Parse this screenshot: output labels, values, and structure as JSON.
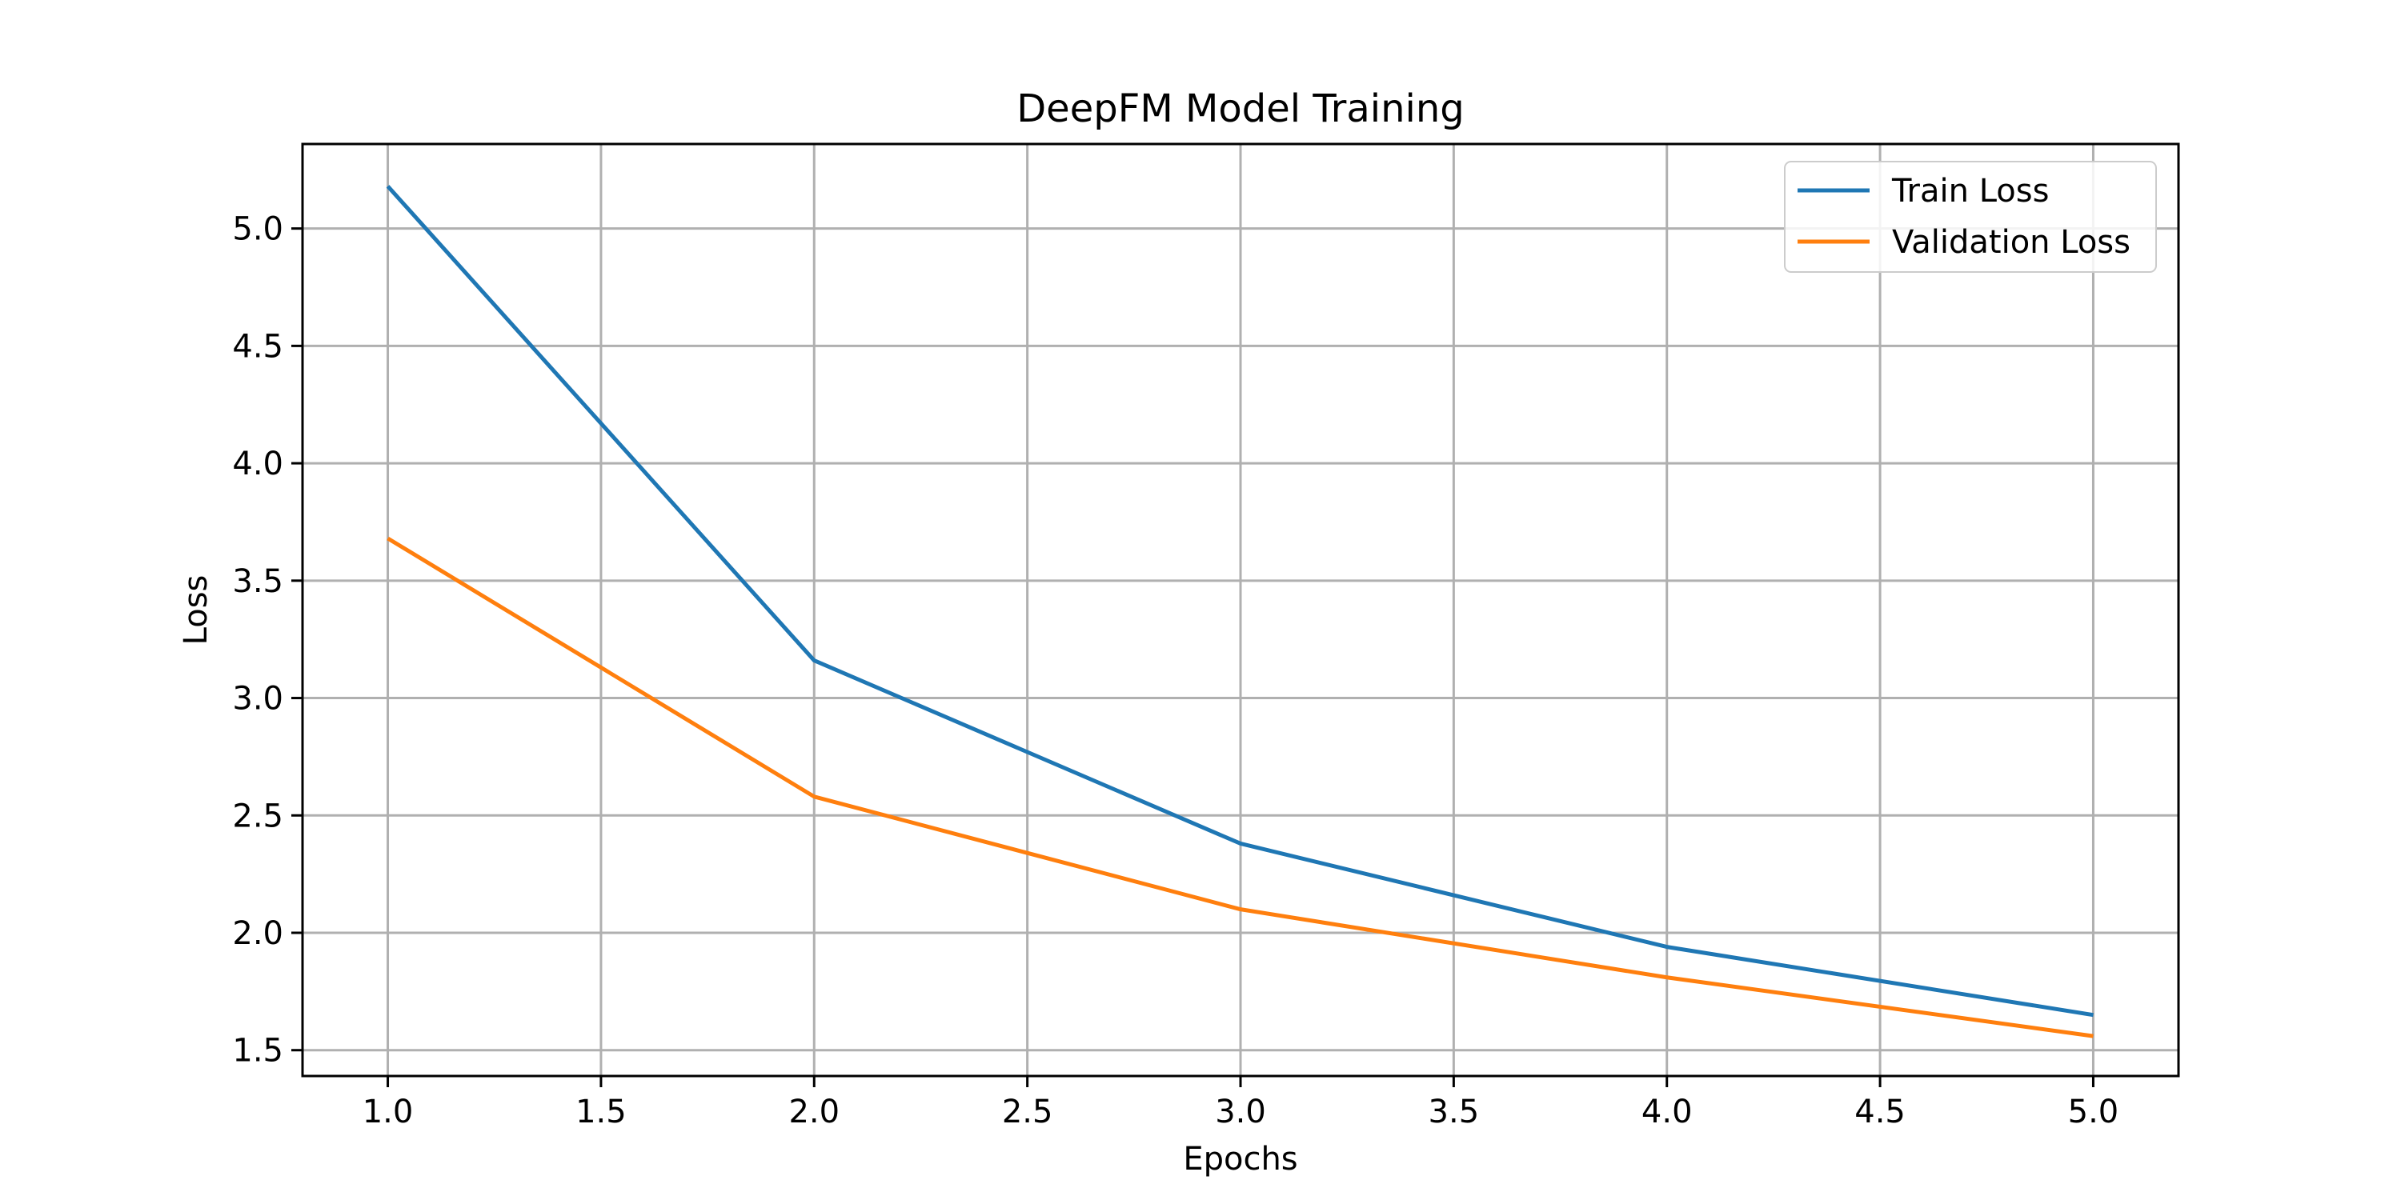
{
  "chart_data": {
    "type": "line",
    "title": "DeepFM Model Training",
    "xlabel": "Epochs",
    "ylabel": "Loss",
    "x": [
      1,
      2,
      3,
      4,
      5
    ],
    "xlim": [
      0.8,
      5.2
    ],
    "ylim": [
      1.39,
      5.36
    ],
    "xticks": [
      1.0,
      1.5,
      2.0,
      2.5,
      3.0,
      3.5,
      4.0,
      4.5,
      5.0
    ],
    "yticks": [
      1.5,
      2.0,
      2.5,
      3.0,
      3.5,
      4.0,
      4.5,
      5.0
    ],
    "grid": true,
    "legend_position": "top-right",
    "series": [
      {
        "name": "Train Loss",
        "color": "#1f77b4",
        "values": [
          5.18,
          3.16,
          2.38,
          1.94,
          1.65
        ]
      },
      {
        "name": "Validation Loss",
        "color": "#ff7f0e",
        "values": [
          3.68,
          2.58,
          2.1,
          1.81,
          1.56
        ]
      }
    ]
  }
}
